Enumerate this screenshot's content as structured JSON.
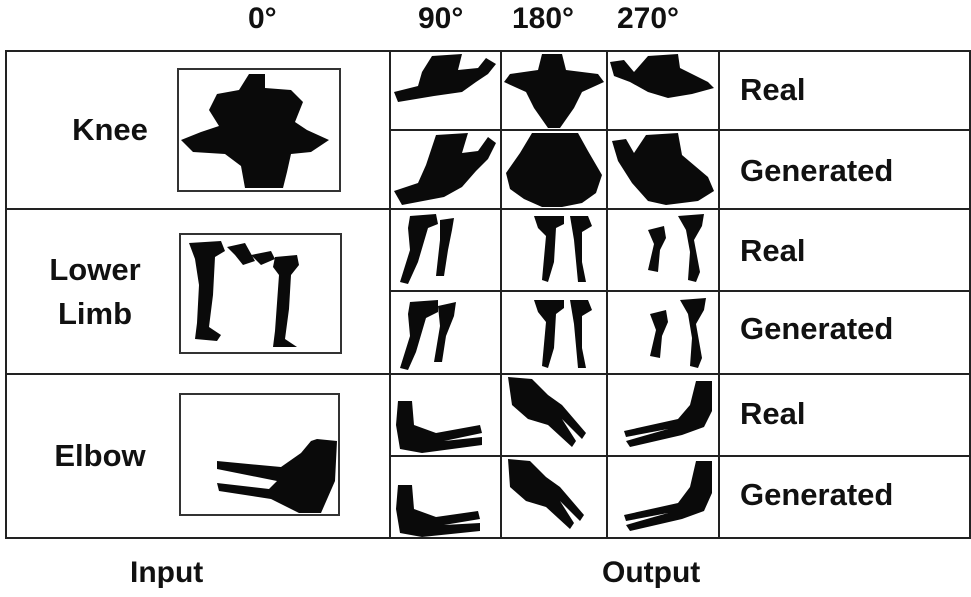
{
  "header": {
    "angle0": "0°",
    "angle90": "90°",
    "angle180": "180°",
    "angle270": "270°"
  },
  "rows": [
    {
      "organ_line1": "Knee",
      "organ_line2": "",
      "real": "Real",
      "generated": "Generated"
    },
    {
      "organ_line1": "Lower",
      "organ_line2": "Limb",
      "real": "Real",
      "generated": "Generated"
    },
    {
      "organ_line1": "Elbow",
      "organ_line2": "",
      "real": "Real",
      "generated": "Generated"
    }
  ],
  "footer": {
    "input": "Input",
    "output": "Output"
  },
  "colors": {
    "silhouette": "#0a0a0a",
    "border": "#333333"
  }
}
